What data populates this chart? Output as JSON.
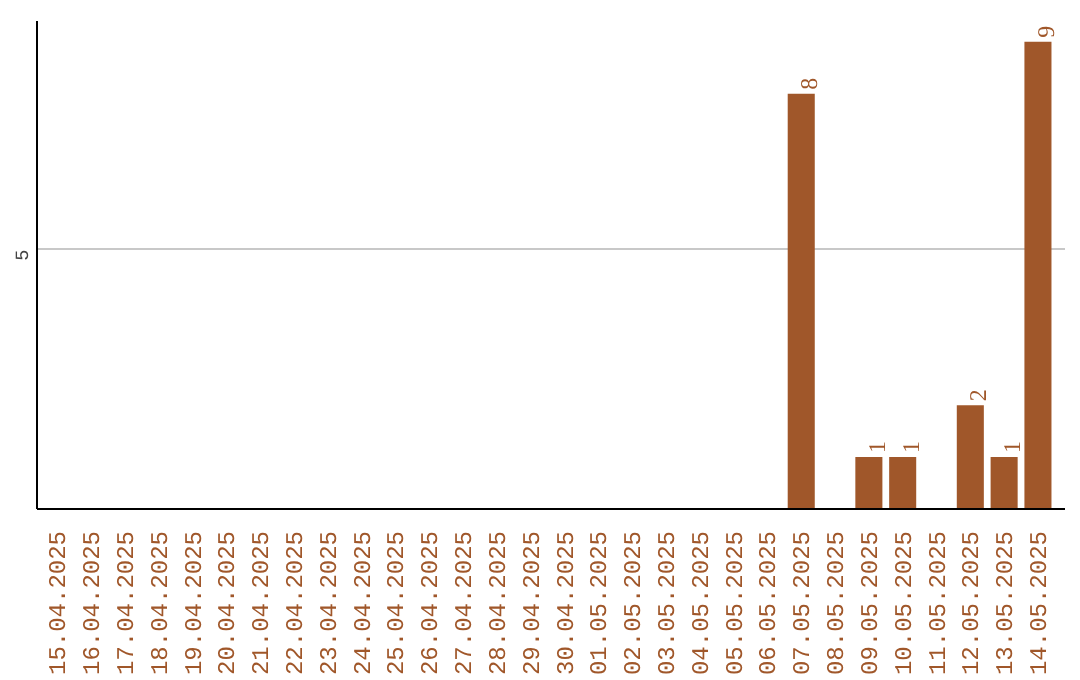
{
  "chart_data": {
    "type": "bar",
    "categories": [
      "15.04.2025",
      "16.04.2025",
      "17.04.2025",
      "18.04.2025",
      "19.04.2025",
      "20.04.2025",
      "21.04.2025",
      "22.04.2025",
      "23.04.2025",
      "24.04.2025",
      "25.04.2025",
      "26.04.2025",
      "27.04.2025",
      "28.04.2025",
      "29.04.2025",
      "30.04.2025",
      "01.05.2025",
      "02.05.2025",
      "03.05.2025",
      "04.05.2025",
      "05.05.2025",
      "06.05.2025",
      "07.05.2025",
      "08.05.2025",
      "09.05.2025",
      "10.05.2025",
      "11.05.2025",
      "12.05.2025",
      "13.05.2025",
      "14.05.2025"
    ],
    "values": [
      null,
      null,
      null,
      null,
      null,
      null,
      null,
      null,
      null,
      null,
      null,
      null,
      null,
      null,
      null,
      null,
      null,
      null,
      null,
      null,
      null,
      null,
      8,
      null,
      1,
      1,
      null,
      2,
      1,
      9
    ],
    "data_labels": true,
    "color": "#a0572a",
    "ylim": [
      0,
      9.4
    ],
    "yticks": [
      5
    ],
    "grid": "y"
  }
}
